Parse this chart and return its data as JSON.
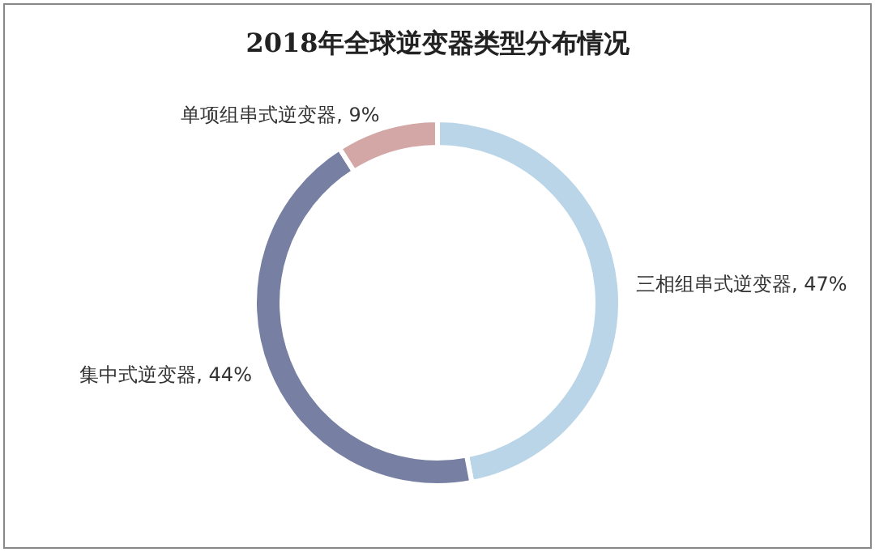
{
  "chart_data": {
    "type": "donut",
    "title": "2018年全球逆变器类型分布情况",
    "categories": [
      "三相组串式逆变器",
      "集中式逆变器",
      "单项组串式逆变器"
    ],
    "values": [
      47,
      44,
      9
    ],
    "value_labels": [
      "47%",
      "44%",
      "9%"
    ],
    "colors": [
      "#b9d5e7",
      "#7780a3",
      "#d4a7a7"
    ]
  }
}
